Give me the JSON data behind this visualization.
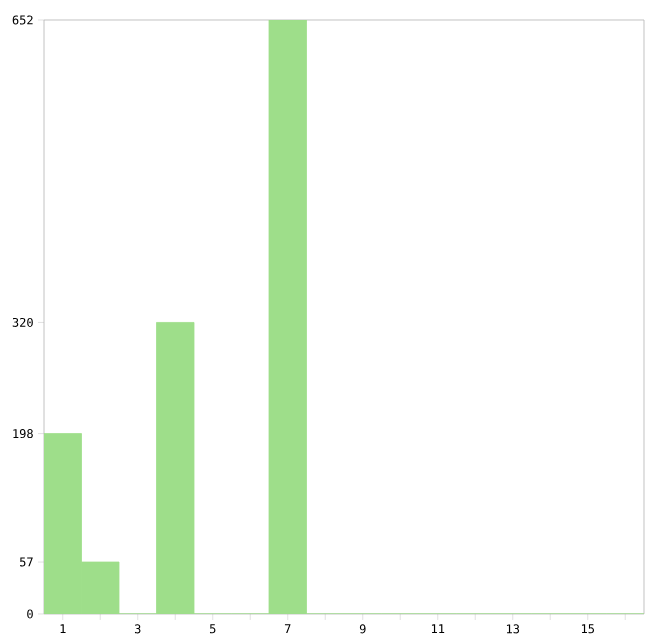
{
  "chart_data": {
    "type": "bar",
    "categories": [
      "1",
      null,
      "3",
      null,
      "5",
      null,
      "7",
      null,
      "9",
      null,
      "11",
      null,
      "13",
      null,
      "15",
      null
    ],
    "values": [
      198,
      57,
      0,
      320,
      0,
      0,
      652,
      0,
      0,
      0,
      0,
      0,
      0,
      0,
      0,
      0
    ],
    "color": "#9ede8a",
    "ylim": [
      0,
      652
    ],
    "yticks": [
      0,
      57,
      198,
      320,
      652
    ],
    "grid": false
  }
}
